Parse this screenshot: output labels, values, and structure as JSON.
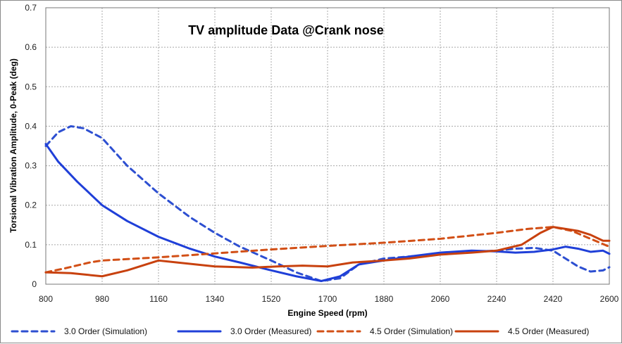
{
  "chart_data": {
    "type": "line",
    "title": "TV amplitude Data @Crank nose",
    "xlabel": "Engine Speed (rpm)",
    "ylabel": "Torsional Vibration Amplitude, 0-Peak (deg)",
    "xlim": [
      800,
      2600
    ],
    "ylim": [
      0,
      0.7
    ],
    "xticks": [
      800,
      980,
      1160,
      1340,
      1520,
      1700,
      1880,
      2060,
      2240,
      2420,
      2600
    ],
    "yticks": [
      0,
      0.1,
      0.2,
      0.3,
      0.4,
      0.5,
      0.6,
      0.7
    ],
    "xtick_labels": [
      "800",
      "980",
      "1160",
      "1340",
      "1520",
      "1700",
      "1880",
      "2060",
      "2240",
      "2420",
      "2600"
    ],
    "ytick_labels": [
      "0",
      "0.1",
      "0.2",
      "0.3",
      "0.4",
      "0.5",
      "0.6",
      "0.7"
    ],
    "grid": true,
    "legend_position": "bottom",
    "series": [
      {
        "name": "3.0 Order (Simulation)",
        "color": "#2d4fd1",
        "dash": "dashed",
        "x": [
          800,
          840,
          880,
          920,
          980,
          1060,
          1160,
          1260,
          1340,
          1420,
          1520,
          1600,
          1680,
          1740,
          1800,
          1880,
          1960,
          2060,
          2160,
          2240,
          2300,
          2360,
          2420,
          2460,
          2500,
          2540,
          2580,
          2600
        ],
        "y": [
          0.35,
          0.385,
          0.4,
          0.395,
          0.37,
          0.3,
          0.23,
          0.17,
          0.13,
          0.095,
          0.06,
          0.03,
          0.008,
          0.015,
          0.05,
          0.065,
          0.07,
          0.078,
          0.082,
          0.085,
          0.09,
          0.092,
          0.085,
          0.065,
          0.045,
          0.032,
          0.035,
          0.043
        ]
      },
      {
        "name": "3.0 Order (Measured)",
        "color": "#1f3fd8",
        "dash": "solid",
        "x": [
          800,
          840,
          900,
          980,
          1060,
          1160,
          1260,
          1340,
          1420,
          1520,
          1600,
          1680,
          1740,
          1800,
          1880,
          1960,
          2060,
          2160,
          2240,
          2300,
          2360,
          2420,
          2460,
          2500,
          2540,
          2580,
          2600
        ],
        "y": [
          0.355,
          0.31,
          0.26,
          0.2,
          0.16,
          0.12,
          0.09,
          0.07,
          0.055,
          0.035,
          0.02,
          0.008,
          0.02,
          0.05,
          0.06,
          0.07,
          0.08,
          0.085,
          0.083,
          0.08,
          0.082,
          0.088,
          0.095,
          0.09,
          0.082,
          0.085,
          0.077
        ]
      },
      {
        "name": "4.5 Order (Simulation)",
        "color": "#d24f16",
        "dash": "dashed",
        "x": [
          800,
          860,
          940,
          980,
          1160,
          1340,
          1520,
          1700,
          1880,
          2060,
          2240,
          2340,
          2420,
          2480,
          2540,
          2600
        ],
        "y": [
          0.03,
          0.04,
          0.055,
          0.06,
          0.068,
          0.078,
          0.088,
          0.097,
          0.105,
          0.115,
          0.13,
          0.14,
          0.145,
          0.135,
          0.115,
          0.095
        ]
      },
      {
        "name": "4.5 Order (Measured)",
        "color": "#c8410e",
        "dash": "solid",
        "x": [
          800,
          880,
          980,
          1060,
          1160,
          1220,
          1340,
          1460,
          1540,
          1620,
          1700,
          1780,
          1880,
          1960,
          2060,
          2160,
          2240,
          2320,
          2380,
          2420,
          2460,
          2500,
          2540,
          2580,
          2600
        ],
        "y": [
          0.03,
          0.028,
          0.02,
          0.035,
          0.06,
          0.055,
          0.045,
          0.042,
          0.045,
          0.047,
          0.045,
          0.055,
          0.06,
          0.065,
          0.075,
          0.08,
          0.085,
          0.1,
          0.13,
          0.145,
          0.14,
          0.135,
          0.125,
          0.11,
          0.11
        ]
      }
    ]
  }
}
